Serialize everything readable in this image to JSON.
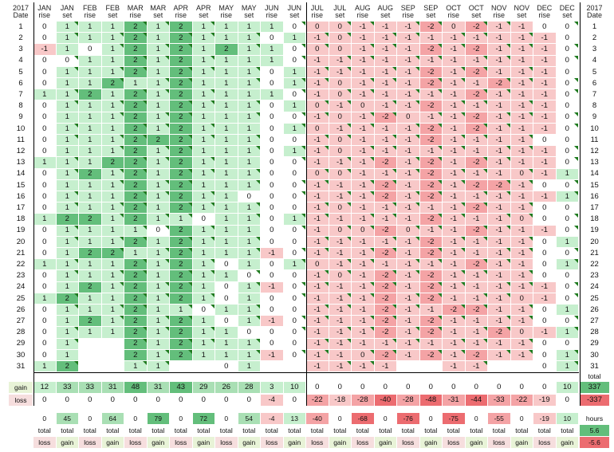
{
  "header": {
    "year": "2017",
    "date_label": "Date"
  },
  "months": [
    {
      "m": "JAN",
      "t": "rise"
    },
    {
      "m": "JAN",
      "t": "set"
    },
    {
      "m": "FEB",
      "t": "rise"
    },
    {
      "m": "FEB",
      "t": "set"
    },
    {
      "m": "MAR",
      "t": "rise"
    },
    {
      "m": "MAR",
      "t": "set"
    },
    {
      "m": "APR",
      "t": "rise"
    },
    {
      "m": "APR",
      "t": "set"
    },
    {
      "m": "MAY",
      "t": "rise"
    },
    {
      "m": "MAY",
      "t": "set"
    },
    {
      "m": "JUN",
      "t": "rise"
    },
    {
      "m": "JUN",
      "t": "set"
    },
    {
      "m": "JUL",
      "t": "rise"
    },
    {
      "m": "JUL",
      "t": "set"
    },
    {
      "m": "AUG",
      "t": "rise"
    },
    {
      "m": "AUG",
      "t": "set"
    },
    {
      "m": "SEP",
      "t": "rise"
    },
    {
      "m": "SEP",
      "t": "set"
    },
    {
      "m": "OCT",
      "t": "rise"
    },
    {
      "m": "OCT",
      "t": "set"
    },
    {
      "m": "NOV",
      "t": "rise"
    },
    {
      "m": "NOV",
      "t": "set"
    },
    {
      "m": "DEC",
      "t": "rise"
    },
    {
      "m": "DEC",
      "t": "set"
    }
  ],
  "rows": [
    [
      "0",
      "1",
      "1",
      "1",
      "2",
      "1",
      "2",
      "1",
      "1",
      "1",
      "1",
      "0",
      "0",
      "0",
      "-1",
      "-1",
      "-1",
      "-2",
      "0",
      "-2",
      "-1",
      "-1",
      "0",
      "0"
    ],
    [
      "0",
      "1",
      "1",
      "1",
      "2",
      "1",
      "2",
      "1",
      "1",
      "1",
      "0",
      "1",
      "-1",
      "0",
      "-1",
      "-1",
      "-1",
      "-1",
      "-1",
      "-1",
      "-1",
      "-1",
      "-1",
      "0"
    ],
    [
      "-1",
      "1",
      "0",
      "1",
      "2",
      "1",
      "2",
      "1",
      "2",
      "1",
      "1",
      "0",
      "0",
      "0",
      "-1",
      "-1",
      "-1",
      "-2",
      "-1",
      "-2",
      "-1",
      "-1",
      "-1",
      "0"
    ],
    [
      "0",
      "0",
      "1",
      "1",
      "2",
      "1",
      "2",
      "1",
      "1",
      "1",
      "1",
      "0",
      "-1",
      "-1",
      "-1",
      "-1",
      "-1",
      "-1",
      "-1",
      "-1",
      "-1",
      "-1",
      "-1",
      "0"
    ],
    [
      "0",
      "1",
      "1",
      "1",
      "2",
      "1",
      "2",
      "1",
      "1",
      "1",
      "0",
      "1",
      "-1",
      "-1",
      "-1",
      "-1",
      "-1",
      "-2",
      "-1",
      "-2",
      "-1",
      "-1",
      "-1",
      "0"
    ],
    [
      "0",
      "1",
      "1",
      "2",
      "1",
      "1",
      "2",
      "1",
      "1",
      "1",
      "0",
      "1",
      "-1",
      "0",
      "-1",
      "-1",
      "-1",
      "-2",
      "-1",
      "-1",
      "-2",
      "-1",
      "-1",
      "0"
    ],
    [
      "1",
      "1",
      "2",
      "1",
      "2",
      "1",
      "2",
      "1",
      "1",
      "1",
      "1",
      "0",
      "-1",
      "0",
      "-1",
      "-1",
      "-1",
      "-1",
      "-1",
      "-2",
      "-1",
      "-1",
      "-1",
      "0"
    ],
    [
      "0",
      "1",
      "1",
      "1",
      "2",
      "1",
      "2",
      "1",
      "1",
      "1",
      "0",
      "1",
      "0",
      "-1",
      "0",
      "-1",
      "-1",
      "-2",
      "-1",
      "-1",
      "-1",
      "-1",
      "-1",
      "0"
    ],
    [
      "0",
      "1",
      "1",
      "1",
      "2",
      "1",
      "2",
      "1",
      "1",
      "1",
      "0",
      "0",
      "-1",
      "0",
      "-1",
      "-2",
      "0",
      "-1",
      "-1",
      "-2",
      "-1",
      "-1",
      "-1",
      "0"
    ],
    [
      "0",
      "1",
      "1",
      "1",
      "2",
      "1",
      "2",
      "1",
      "1",
      "1",
      "0",
      "1",
      "0",
      "-1",
      "-1",
      "-1",
      "-1",
      "-2",
      "-1",
      "-2",
      "-1",
      "-1",
      "-1",
      "0"
    ],
    [
      "0",
      "1",
      "1",
      "1",
      "2",
      "2",
      "2",
      "1",
      "1",
      "1",
      "0",
      "0",
      "-1",
      "0",
      "-1",
      "-1",
      "-1",
      "-2",
      "-1",
      "-1",
      "-1",
      "-1",
      "0",
      "0"
    ],
    [
      "0",
      "1",
      "1",
      "1",
      "2",
      "1",
      "2",
      "1",
      "1",
      "1",
      "0",
      "1",
      "-1",
      "0",
      "-1",
      "-1",
      "-1",
      "-1",
      "-1",
      "-1",
      "-1",
      "-1",
      "-1",
      "0"
    ],
    [
      "1",
      "1",
      "1",
      "2",
      "2",
      "1",
      "2",
      "1",
      "1",
      "1",
      "0",
      "0",
      "-1",
      "-1",
      "-1",
      "-2",
      "-1",
      "-2",
      "-1",
      "-2",
      "-1",
      "-1",
      "-1",
      "0"
    ],
    [
      "0",
      "1",
      "2",
      "1",
      "2",
      "1",
      "2",
      "1",
      "1",
      "1",
      "0",
      "0",
      "0",
      "0",
      "-1",
      "-1",
      "-1",
      "-2",
      "-1",
      "-1",
      "-1",
      "0",
      "-1",
      "1"
    ],
    [
      "0",
      "1",
      "1",
      "1",
      "2",
      "1",
      "2",
      "1",
      "1",
      "1",
      "0",
      "0",
      "-1",
      "-1",
      "-1",
      "-2",
      "-1",
      "-2",
      "-1",
      "-2",
      "-2",
      "-1",
      "0",
      "0"
    ],
    [
      "0",
      "1",
      "1",
      "1",
      "2",
      "1",
      "2",
      "1",
      "1",
      "0",
      "0",
      "0",
      "-1",
      "-1",
      "-1",
      "-2",
      "-1",
      "-2",
      "-1",
      "-1",
      "-1",
      "-1",
      "-1",
      "1"
    ],
    [
      "0",
      "1",
      "1",
      "1",
      "2",
      "1",
      "2",
      "1",
      "1",
      "1",
      "0",
      "0",
      "-1",
      "0",
      "-1",
      "-1",
      "-1",
      "-1",
      "-1",
      "-2",
      "-1",
      "-1",
      "0",
      "0"
    ],
    [
      "1",
      "2",
      "2",
      "1",
      "2",
      "1",
      "1",
      "0",
      "1",
      "1",
      "0",
      "1",
      "-1",
      "-1",
      "-1",
      "-1",
      "-1",
      "-2",
      "-1",
      "-1",
      "-1",
      "0",
      "0",
      "0"
    ],
    [
      "0",
      "1",
      "1",
      "1",
      "1",
      "0",
      "2",
      "1",
      "1",
      "1",
      "0",
      "0",
      "-1",
      "0",
      "0",
      "-2",
      "0",
      "-1",
      "-1",
      "-2",
      "-1",
      "-1",
      "-1",
      "0"
    ],
    [
      "0",
      "1",
      "1",
      "1",
      "2",
      "1",
      "2",
      "1",
      "1",
      "1",
      "0",
      "0",
      "-1",
      "-1",
      "-1",
      "-1",
      "-1",
      "-2",
      "-1",
      "-1",
      "-1",
      "-1",
      "0",
      "1"
    ],
    [
      "0",
      "1",
      "2",
      "2",
      "1",
      "1",
      "2",
      "1",
      "1",
      "1",
      "-1",
      "0",
      "-1",
      "-1",
      "-1",
      "-2",
      "-1",
      "-2",
      "-1",
      "-1",
      "-1",
      "-1",
      "0",
      "0"
    ],
    [
      "1",
      "1",
      "1",
      "1",
      "2",
      "1",
      "2",
      "1",
      "0",
      "1",
      "0",
      "1",
      "0",
      "-1",
      "-1",
      "-1",
      "-1",
      "-1",
      "-1",
      "-2",
      "-1",
      "-1",
      "0",
      "1"
    ],
    [
      "0",
      "1",
      "1",
      "1",
      "2",
      "1",
      "2",
      "1",
      "1",
      "0",
      "0",
      "0",
      "-1",
      "0",
      "-1",
      "-2",
      "-1",
      "-2",
      "-1",
      "-1",
      "-1",
      "-1",
      "0",
      "0"
    ],
    [
      "0",
      "1",
      "2",
      "1",
      "2",
      "1",
      "2",
      "1",
      "0",
      "1",
      "-1",
      "0",
      "-1",
      "-1",
      "-1",
      "-2",
      "-1",
      "-2",
      "-1",
      "-1",
      "-1",
      "-1",
      "-1",
      "0"
    ],
    [
      "1",
      "2",
      "1",
      "1",
      "2",
      "1",
      "2",
      "1",
      "0",
      "1",
      "0",
      "0",
      "-1",
      "-1",
      "-1",
      "-2",
      "-1",
      "-2",
      "-1",
      "-1",
      "-1",
      "0",
      "-1",
      "0"
    ],
    [
      "0",
      "1",
      "1",
      "1",
      "2",
      "1",
      "1",
      "0",
      "1",
      "1",
      "0",
      "0",
      "-1",
      "-1",
      "-1",
      "-2",
      "-1",
      "-1",
      "-2",
      "-2",
      "-1",
      "-1",
      "0",
      "1"
    ],
    [
      "0",
      "1",
      "2",
      "1",
      "2",
      "1",
      "2",
      "1",
      "0",
      "1",
      "-1",
      "0",
      "-1",
      "-1",
      "-1",
      "-2",
      "-1",
      "-2",
      "-1",
      "-1",
      "-1",
      "-1",
      "0",
      "0"
    ],
    [
      "0",
      "1",
      "1",
      "1",
      "2",
      "1",
      "2",
      "1",
      "1",
      "0",
      "0",
      "0",
      "-1",
      "-1",
      "-1",
      "-2",
      "-1",
      "-2",
      "-1",
      "-1",
      "-2",
      "0",
      "-1",
      "1"
    ],
    [
      "0",
      "1",
      "",
      "",
      "2",
      "1",
      "2",
      "1",
      "1",
      "1",
      "0",
      "0",
      "-1",
      "-1",
      "-1",
      "-1",
      "-1",
      "-1",
      "-1",
      "-1",
      "-1",
      "-1",
      "0",
      "0"
    ],
    [
      "0",
      "1",
      "",
      "",
      "2",
      "1",
      "2",
      "1",
      "1",
      "1",
      "-1",
      "0",
      "-1",
      "-1",
      "0",
      "-2",
      "-1",
      "-2",
      "-1",
      "-2",
      "-1",
      "-1",
      "0",
      "1"
    ],
    [
      "1",
      "2",
      "",
      "",
      "1",
      "1",
      "",
      "",
      "0",
      "1",
      "",
      "",
      "-1",
      "-1",
      "-1",
      "-1",
      "",
      "",
      "-1",
      "-1",
      "",
      "",
      "0",
      "1"
    ]
  ],
  "gain_row": {
    "label": "gain",
    "values": [
      "12",
      "33",
      "33",
      "31",
      "48",
      "31",
      "43",
      "29",
      "26",
      "28",
      "3",
      "10",
      "0",
      "0",
      "0",
      "0",
      "0",
      "0",
      "0",
      "0",
      "0",
      "0",
      "0",
      "10"
    ],
    "total": "337"
  },
  "loss_row": {
    "label": "loss",
    "values": [
      "0",
      "0",
      "0",
      "0",
      "0",
      "0",
      "0",
      "0",
      "0",
      "0",
      "-4",
      "0",
      "-22",
      "-18",
      "-28",
      "-40",
      "-28",
      "-48",
      "-31",
      "-44",
      "-33",
      "-22",
      "-19",
      "0"
    ],
    "total": "-337"
  },
  "total_label": "total",
  "summary": {
    "values": [
      "0",
      "45",
      "0",
      "64",
      "0",
      "79",
      "0",
      "72",
      "0",
      "54",
      "-4",
      "13",
      "-40",
      "0",
      "-68",
      "0",
      "-76",
      "0",
      "-75",
      "0",
      "-55",
      "0",
      "-19",
      "10"
    ],
    "row2": [
      "total",
      "total",
      "total",
      "total",
      "total",
      "total",
      "total",
      "total",
      "total",
      "total",
      "total",
      "total",
      "total",
      "total",
      "total",
      "total",
      "total",
      "total",
      "total",
      "total",
      "total",
      "total",
      "total",
      "total"
    ],
    "row3": [
      "loss",
      "gain",
      "loss",
      "gain",
      "loss",
      "gain",
      "loss",
      "gain",
      "loss",
      "gain",
      "loss",
      "gain",
      "loss",
      "gain",
      "loss",
      "gain",
      "loss",
      "gain",
      "loss",
      "gain",
      "loss",
      "gain",
      "loss",
      "gain"
    ],
    "hours_label": "hours",
    "hours_gain": "5.6",
    "hours_loss": "-5.6"
  },
  "colors": {
    "light_green": "#c6efce",
    "mid_green": "#a9dfb4",
    "strong_green": "#63be7b",
    "light_red": "#f8c8c8",
    "mid_red": "#f4a3a5",
    "strong_red": "#ec6c70",
    "triangle": "#1e7a1e"
  }
}
